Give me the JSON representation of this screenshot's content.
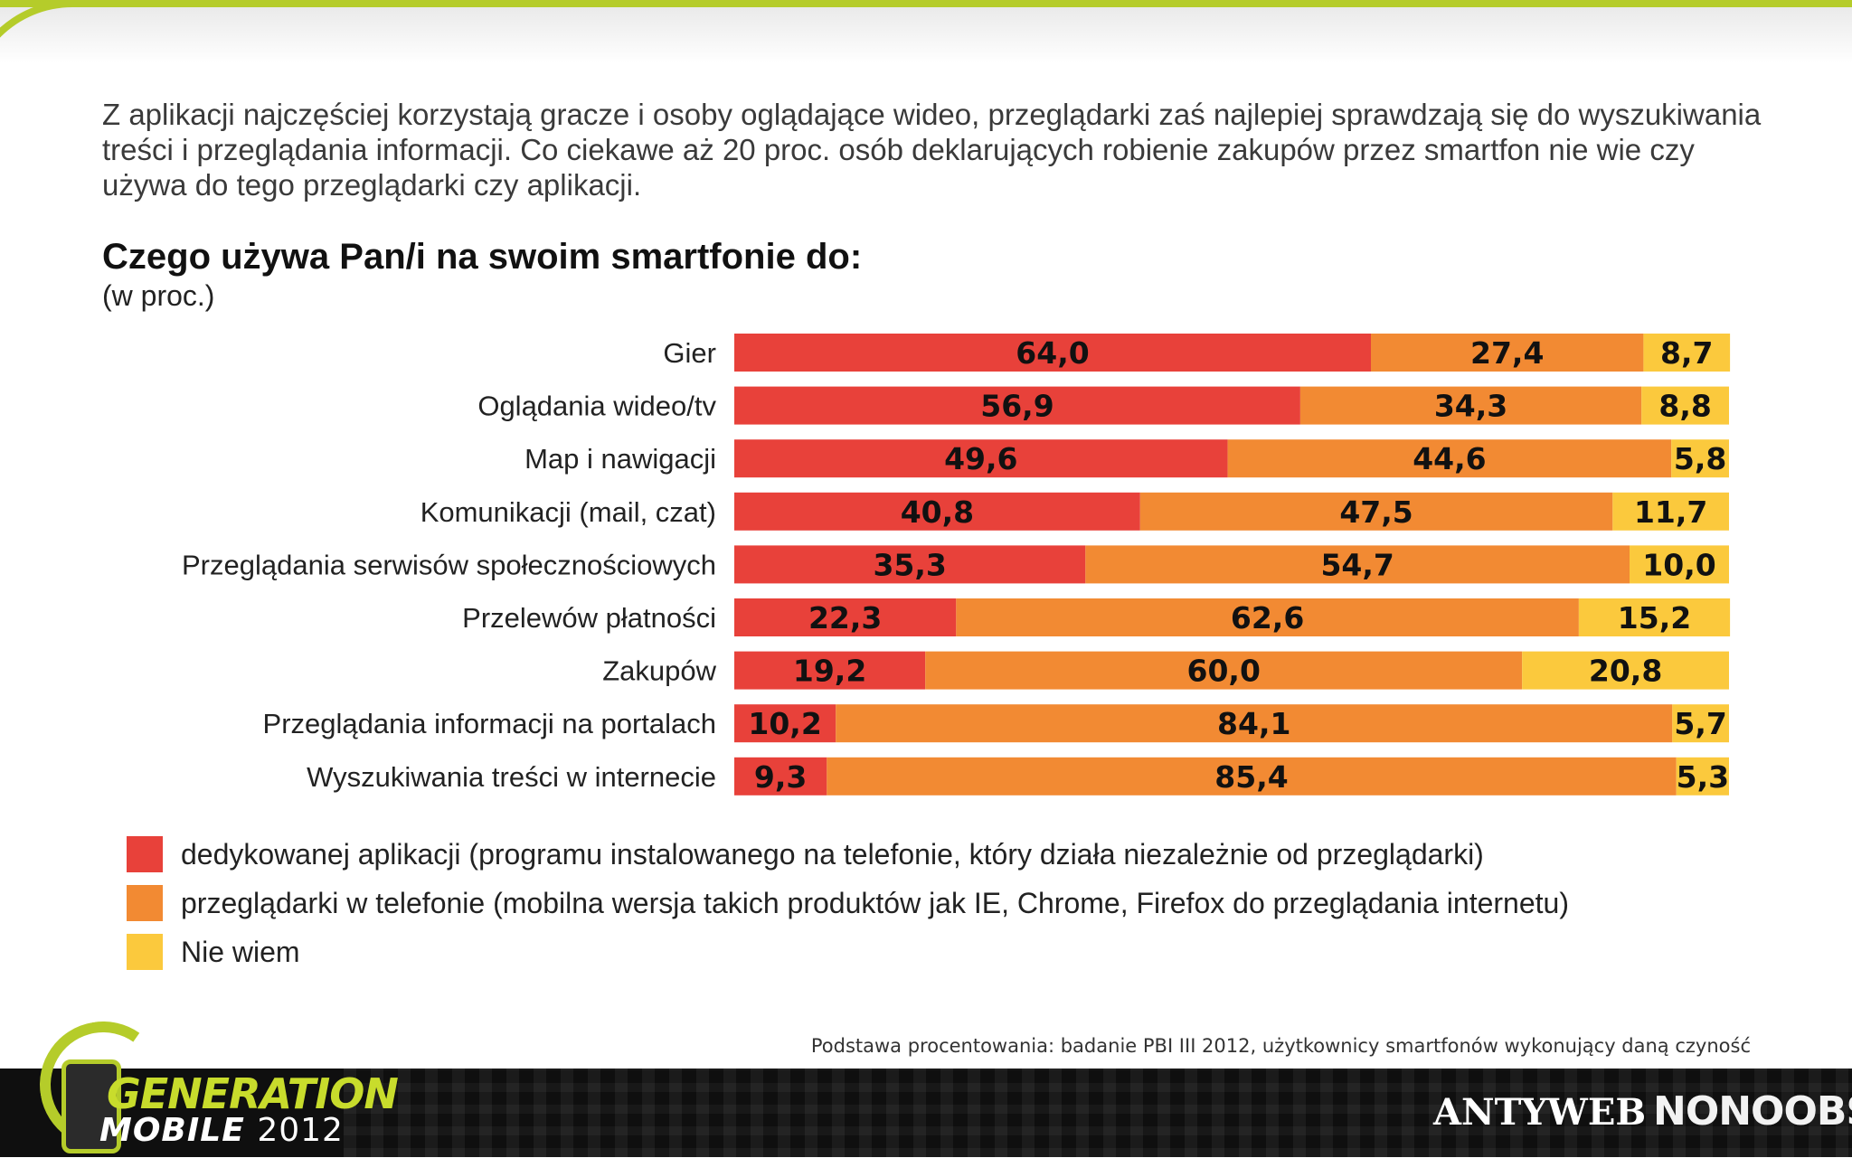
{
  "intro_text": "Z aplikacji najczęściej korzystają gracze i osoby oglądające wideo, przeglądarki zaś najlepiej sprawdzają się do wyszukiwania treści i przeglądania informacji. Co ciekawe aż 20 proc. osób deklarujących robienie zakupów przez smartfon nie wie czy używa do tego przeglądarki czy aplikacji.",
  "chart_data": {
    "type": "bar",
    "orientation": "horizontal",
    "stacked": true,
    "title": "Czego używa Pan/i na swoim smartfonie do:",
    "subtitle": "(w proc.)",
    "categories": [
      "Gier",
      "Oglądania wideo/tv",
      "Map i nawigacji",
      "Komunikacji (mail, czat)",
      "Przeglądania serwisów społecznościowych",
      "Przelewów płatności",
      "Zakupów",
      "Przeglądania informacji na portalach",
      "Wyszukiwania treści w internecie"
    ],
    "series": [
      {
        "name": "dedykowanej aplikacji (programu instalowanego na telefonie, który działa niezależnie od przeglądarki)",
        "color": "#e8413a",
        "values": [
          64.0,
          56.9,
          49.6,
          40.8,
          35.3,
          22.3,
          19.2,
          10.2,
          9.3
        ],
        "labels": [
          "64,0",
          "56,9",
          "49,6",
          "40,8",
          "35,3",
          "22,3",
          "19,2",
          "10,2",
          "9,3"
        ]
      },
      {
        "name": "przeglądarki w telefonie (mobilna wersja takich produktów jak IE, Chrome, Firefox do przeglądania internetu)",
        "color": "#f28a33",
        "values": [
          27.4,
          34.3,
          44.6,
          47.5,
          54.7,
          62.6,
          60.0,
          84.1,
          85.4
        ],
        "labels": [
          "27,4",
          "34,3",
          "44,6",
          "47,5",
          "54,7",
          "62,6",
          "60,0",
          "84,1",
          "85,4"
        ]
      },
      {
        "name": "Nie wiem",
        "color": "#fbc93d",
        "values": [
          8.7,
          8.8,
          5.8,
          11.7,
          10.0,
          15.2,
          20.8,
          5.7,
          5.3
        ],
        "labels": [
          "8,7",
          "8,8",
          "5,8",
          "11,7",
          "10,0",
          "15,2",
          "20,8",
          "5,7",
          "5,3"
        ]
      }
    ],
    "xlim": [
      0,
      100
    ],
    "legend_position": "bottom-left",
    "grid": false
  },
  "source_note": "Podstawa procentowania: badanie PBI III 2012, użytkownicy smartfonów wykonujący daną czyność",
  "footer": {
    "logo_generation": "GENERATION",
    "logo_mobile": "MOBILE",
    "logo_year": "2012",
    "logo_antyweb": "ANTYWEB",
    "logo_nonoobs": "NONOOBS"
  }
}
